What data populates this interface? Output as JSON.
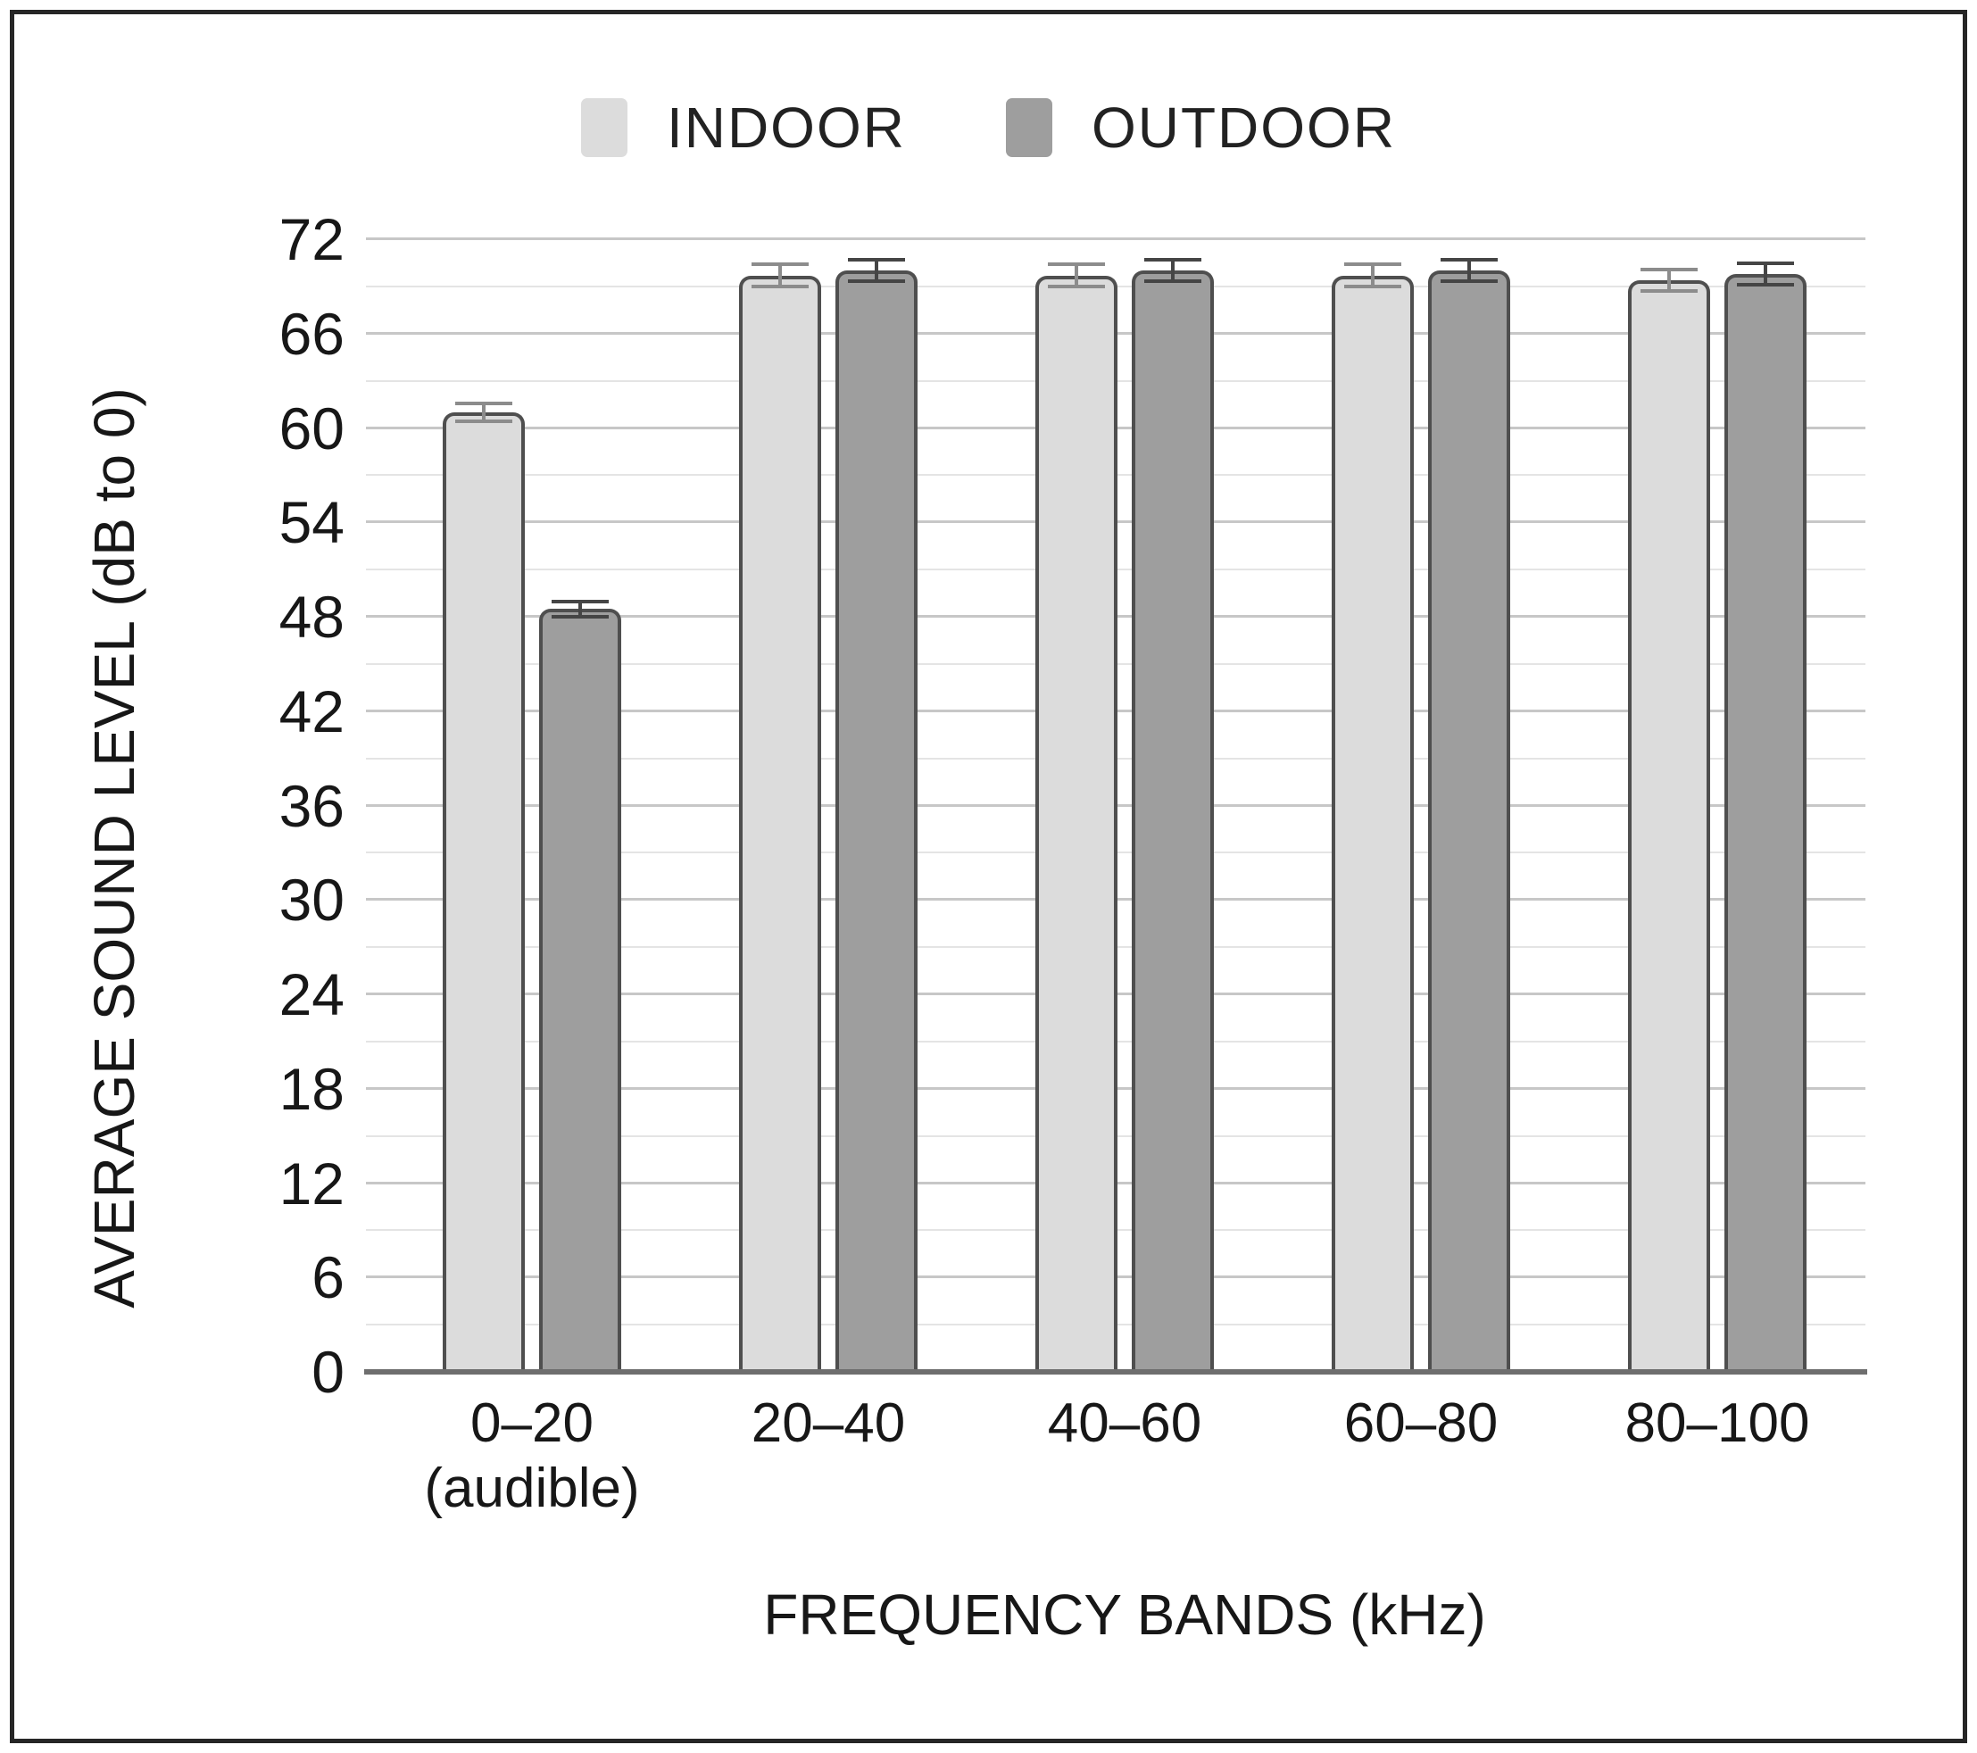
{
  "chart_data": {
    "type": "bar",
    "title": "",
    "xlabel": "FREQUENCY BANDS (kHz)",
    "ylabel": "AVERAGE SOUND LEVEL (dB to 0)",
    "ylim": [
      0,
      72
    ],
    "ymajor_step": 6,
    "yminor_step": 3,
    "grid": "horizontal-only",
    "legend_position": "top-center",
    "error_bars": true,
    "categories": [
      {
        "label": "0–20",
        "sublabel": "(audible)"
      },
      {
        "label": "20–40"
      },
      {
        "label": "40–60"
      },
      {
        "label": "60–80"
      },
      {
        "label": "80–100"
      }
    ],
    "series": [
      {
        "name": "INDOOR",
        "fill": "#dcdcdc",
        "edge": "#4f4f4f",
        "error_color": "#8c8c8c",
        "values": [
          61,
          69.7,
          69.7,
          69.7,
          69.4
        ],
        "errors": [
          0.7,
          0.8,
          0.8,
          0.8,
          0.8
        ]
      },
      {
        "name": "OUTDOOR",
        "fill": "#9e9e9e",
        "edge": "#4f4f4f",
        "error_color": "#454545",
        "values": [
          48.5,
          70,
          70,
          70,
          69.8
        ],
        "errors": [
          0.6,
          0.8,
          0.8,
          0.8,
          0.8
        ]
      }
    ]
  },
  "colors": {
    "background": "#ffffff",
    "frame_border": "#262626",
    "grid_major": "#c7c7c7",
    "grid_minor": "#e4e4e4",
    "baseline": "#6e6e6e",
    "text": "#171717"
  }
}
